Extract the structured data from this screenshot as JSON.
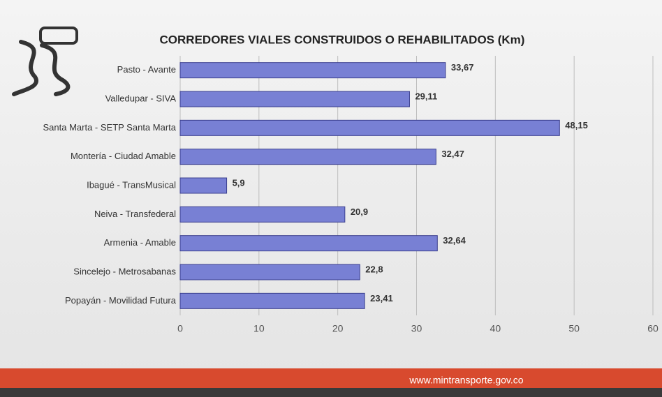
{
  "chart_data": {
    "type": "barh",
    "title": "CORREDORES VIALES CONSTRUIDOS O REHABILITADOS  (Km)",
    "categories": [
      "Pasto - Avante",
      "Valledupar - SIVA",
      "Santa Marta - SETP Santa Marta",
      "Montería - Ciudad Amable",
      "Ibagué - TransMusical",
      "Neiva - Transfederal",
      "Armenia - Amable",
      "Sincelejo - Metrosabanas",
      "Popayán - Movilidad Futura"
    ],
    "values": [
      33.67,
      29.11,
      48.15,
      32.47,
      5.9,
      20.9,
      32.64,
      22.8,
      23.41
    ],
    "value_labels": [
      "33,67",
      "29,11",
      "48,15",
      "32,47",
      "5,9",
      "20,9",
      "32,64",
      "22,8",
      "23,41"
    ],
    "color": "#7880d4",
    "xlim": [
      0,
      60
    ],
    "xticks": [
      0,
      10,
      20,
      30,
      40,
      50,
      60
    ],
    "grid": true
  },
  "footer": "www.mintransporte.gov.co"
}
